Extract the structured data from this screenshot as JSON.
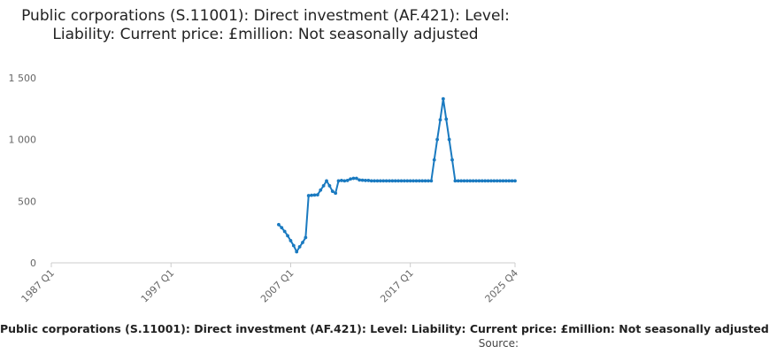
{
  "page": {
    "title": "Public corporations (S.11001): Direct investment (AF.421): Level: Liability: Current price: £million: Not seasonally adjusted",
    "legend_text": "Public corporations (S.11001): Direct investment (AF.421): Level: Liability: Current price: £million: Not seasonally adjusted",
    "source_label": "Source:"
  },
  "chart_data": {
    "type": "line",
    "title": "Public corporations (S.11001): Direct investment (AF.421): Level: Liability: Current price: £million: Not seasonally adjusted",
    "xlabel": "",
    "ylabel": "",
    "ylim": [
      0,
      1500
    ],
    "yticks": [
      0,
      500,
      1000,
      1500
    ],
    "ytick_labels": [
      "0",
      "500",
      "1 000",
      "1 500"
    ],
    "xlim": [
      1987.0,
      2025.75
    ],
    "xtick_positions": [
      1987.0,
      1997.0,
      2007.0,
      2017.0,
      2025.75
    ],
    "xtick_labels": [
      "1987 Q1",
      "1997 Q1",
      "2007 Q1",
      "2017 Q1",
      "2025 Q4"
    ],
    "grid": false,
    "color": "#1a7ac0",
    "series": [
      {
        "name": "Public corporations (S.11001): Direct investment (AF.421): Level: Liability: Current price: £million: Not seasonally adjusted",
        "x": [
          2006.0,
          2006.25,
          2006.5,
          2006.75,
          2007.0,
          2007.25,
          2007.5,
          2007.75,
          2008.0,
          2008.25,
          2008.5,
          2008.75,
          2009.0,
          2009.25,
          2009.5,
          2009.75,
          2010.0,
          2010.25,
          2010.5,
          2010.75,
          2011.0,
          2011.25,
          2011.5,
          2011.75,
          2012.0,
          2012.25,
          2012.5,
          2012.75,
          2013.0,
          2013.25,
          2013.5,
          2013.75,
          2014.0,
          2014.25,
          2014.5,
          2014.75,
          2015.0,
          2015.25,
          2015.5,
          2015.75,
          2016.0,
          2016.25,
          2016.5,
          2016.75,
          2017.0,
          2017.25,
          2017.5,
          2017.75,
          2018.0,
          2018.25,
          2018.5,
          2018.75,
          2019.0,
          2019.25,
          2019.5,
          2019.75,
          2020.0,
          2020.25,
          2020.5,
          2020.75,
          2021.0,
          2021.25,
          2021.5,
          2021.75,
          2022.0,
          2022.25,
          2022.5,
          2022.75,
          2023.0,
          2023.25,
          2023.5,
          2023.75,
          2024.0,
          2024.25,
          2024.5,
          2024.75,
          2025.0,
          2025.25,
          2025.5,
          2025.75
        ],
        "values": [
          310,
          285,
          255,
          220,
          180,
          140,
          90,
          130,
          165,
          205,
          545,
          548,
          550,
          552,
          590,
          625,
          665,
          625,
          580,
          565,
          665,
          668,
          665,
          668,
          680,
          685,
          685,
          672,
          670,
          668,
          668,
          665,
          665,
          665,
          665,
          665,
          665,
          665,
          665,
          665,
          665,
          665,
          665,
          665,
          665,
          665,
          665,
          665,
          665,
          665,
          665,
          665,
          835,
          1000,
          1160,
          1330,
          1165,
          1000,
          835,
          665,
          665,
          665,
          665,
          665,
          665,
          665,
          665,
          665,
          665,
          665,
          665,
          665,
          665,
          665,
          665,
          665,
          665,
          665,
          665,
          665
        ]
      }
    ]
  }
}
